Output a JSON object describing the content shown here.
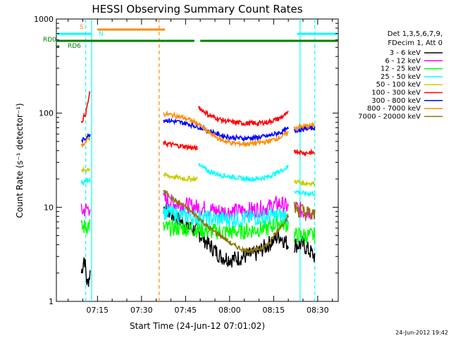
{
  "chart_data": {
    "type": "line",
    "title": "HESSI Observing Summary Count Rates",
    "xlabel": "Start Time (24-Jun-12 07:01:02)",
    "ylabel": "Count Rate (s⁻¹ detector⁻¹)",
    "yscale": "log",
    "ylim": [
      1,
      1000
    ],
    "x_units": "minutes after 07:01:02",
    "xlim": [
      0,
      96
    ],
    "x_tick_labels": [
      "07:15",
      "07:30",
      "07:45",
      "08:00",
      "08:15",
      "08:30"
    ],
    "y_tick_labels": [
      "1",
      "10",
      "100",
      "1000"
    ],
    "timestamp": "24-Jun-2012 19:42",
    "legend": {
      "header": [
        "Det 1,3,5,6,7,9,",
        "FDecim 1, Att 0"
      ],
      "entries": [
        {
          "label": "3 - 6 keV",
          "color": "#000000"
        },
        {
          "label": "6 - 12 keV",
          "color": "#ff00ff"
        },
        {
          "label": "12 - 25 keV",
          "color": "#00ff00"
        },
        {
          "label": "25 - 50 keV",
          "color": "#00ffff"
        },
        {
          "label": "50 - 100 keV",
          "color": "#cccc00"
        },
        {
          "label": "100 - 300 keV",
          "color": "#ff0000"
        },
        {
          "label": "300 - 800 keV",
          "color": "#0000ff"
        },
        {
          "label": "800 - 7000 keV",
          "color": "#ff8c00"
        },
        {
          "label": "7000 - 20000 keV",
          "color": "#8b7500"
        }
      ]
    },
    "flags": [
      {
        "label": "S",
        "color": "#ff8c00",
        "segments": [
          [
            14,
            37
          ]
        ]
      },
      {
        "label": "N",
        "color": "#00ffff",
        "segments": [
          [
            0,
            12
          ],
          [
            82,
            96
          ]
        ]
      },
      {
        "label": "RD0",
        "color": "#008000",
        "segments": [
          [
            0,
            37
          ],
          [
            37,
            47
          ],
          [
            49,
            78
          ],
          [
            78,
            96
          ]
        ]
      },
      {
        "label": "RD6",
        "color": "#008000",
        "segments": [
          [
            0,
            1
          ]
        ]
      }
    ],
    "markers": [
      {
        "x": 10,
        "color": "#00ffff",
        "style": "dashed"
      },
      {
        "x": 12,
        "color": "#00ffff",
        "style": "solid"
      },
      {
        "x": 35,
        "color": "#ff8c00",
        "style": "dashed"
      },
      {
        "x": 83,
        "color": "#00ffff",
        "style": "solid"
      },
      {
        "x": 88,
        "color": "#00ffff",
        "style": "dashed"
      }
    ],
    "series": [
      {
        "name": "3 - 6 keV",
        "color": "#000000",
        "segments": [
          {
            "x": [
              8.5,
              9.5,
              10.5,
              11.5
            ],
            "y": [
              2,
              3,
              1.5,
              2
            ]
          },
          {
            "x": [
              36.5,
              40,
              44,
              48,
              52,
              56,
              60,
              64,
              68,
              72,
              76,
              79
            ],
            "y": [
              10,
              8,
              6.5,
              5.5,
              4,
              3,
              2.8,
              3,
              3.2,
              4,
              5,
              4
            ]
          },
          {
            "x": [
              81,
              84,
              88
            ],
            "y": [
              4,
              4,
              3
            ]
          }
        ]
      },
      {
        "name": "6 - 12 keV",
        "color": "#ff00ff",
        "segments": [
          {
            "x": [
              8.5,
              11.5
            ],
            "y": [
              9,
              10
            ]
          },
          {
            "x": [
              36.5,
              40,
              44,
              48,
              52,
              56,
              60,
              64,
              68,
              72,
              76,
              79
            ],
            "y": [
              12,
              11,
              10.5,
              10,
              9.5,
              9,
              9,
              9.2,
              9.5,
              10,
              11,
              10
            ]
          },
          {
            "x": [
              81,
              84,
              88
            ],
            "y": [
              10,
              9,
              9
            ]
          }
        ]
      },
      {
        "name": "12 - 25 keV",
        "color": "#00ff00",
        "segments": [
          {
            "x": [
              8.5,
              11.5
            ],
            "y": [
              6,
              6.5
            ]
          },
          {
            "x": [
              36.5,
              40,
              44,
              48,
              52,
              56,
              60,
              64,
              68,
              72,
              76,
              79
            ],
            "y": [
              6,
              6,
              6,
              5.8,
              5.6,
              5.5,
              5.5,
              5.6,
              5.8,
              6,
              7,
              6.5
            ]
          },
          {
            "x": [
              81,
              84,
              88
            ],
            "y": [
              5,
              5,
              5
            ]
          }
        ]
      },
      {
        "name": "25 - 50 keV",
        "color": "#00ffff",
        "segments": [
          {
            "x": [
              8.5,
              11.5
            ],
            "y": [
              18,
              20
            ]
          },
          {
            "x": [
              36.5,
              40,
              44,
              48,
              52,
              56,
              60,
              64,
              68,
              72,
              76,
              79
            ],
            "y": [
              9,
              8.5,
              8,
              7.8,
              7.6,
              7.5,
              7.5,
              7.6,
              7.8,
              8,
              8.2,
              8
            ]
          },
          {
            "x": [
              48.5,
              52,
              56,
              60,
              64,
              68,
              72,
              76,
              79
            ],
            "y": [
              28,
              24,
              22,
              21,
              20,
              20,
              21,
              24,
              27
            ]
          },
          {
            "x": [
              81,
              84,
              88
            ],
            "y": [
              15,
              14,
              14
            ]
          }
        ]
      },
      {
        "name": "50 - 100 keV",
        "color": "#cccc00",
        "segments": [
          {
            "x": [
              8.5,
              11.5
            ],
            "y": [
              24,
              26
            ]
          },
          {
            "x": [
              36.5,
              40,
              44,
              48
            ],
            "y": [
              22,
              21,
              20,
              20
            ]
          },
          {
            "x": [
              81,
              84,
              88
            ],
            "y": [
              19,
              18,
              18
            ]
          }
        ]
      },
      {
        "name": "100 - 300 keV",
        "color": "#ff0000",
        "segments": [
          {
            "x": [
              8.5,
              10,
              11.5
            ],
            "y": [
              80,
              100,
              170
            ]
          },
          {
            "x": [
              36.5,
              40,
              44,
              48
            ],
            "y": [
              48,
              46,
              44,
              42
            ]
          },
          {
            "x": [
              48.5,
              52,
              56,
              60,
              64,
              68,
              72,
              76,
              79
            ],
            "y": [
              115,
              95,
              85,
              80,
              78,
              78,
              80,
              88,
              100
            ]
          },
          {
            "x": [
              81,
              84,
              88
            ],
            "y": [
              40,
              38,
              38
            ]
          }
        ]
      },
      {
        "name": "300 - 800 keV",
        "color": "#0000ff",
        "segments": [
          {
            "x": [
              8.5,
              11.5
            ],
            "y": [
              50,
              60
            ]
          },
          {
            "x": [
              36.5,
              40,
              44,
              48,
              52,
              56,
              60,
              64,
              68,
              72,
              76,
              79
            ],
            "y": [
              85,
              82,
              78,
              72,
              65,
              58,
              55,
              54,
              55,
              57,
              62,
              68
            ]
          },
          {
            "x": [
              81,
              84,
              88
            ],
            "y": [
              65,
              68,
              70
            ]
          }
        ]
      },
      {
        "name": "800 - 7000 keV",
        "color": "#ff8c00",
        "segments": [
          {
            "x": [
              8.5,
              11.5
            ],
            "y": [
              45,
              55
            ]
          },
          {
            "x": [
              36.5,
              40,
              44,
              48,
              52,
              56,
              60,
              64,
              68,
              72,
              76,
              79
            ],
            "y": [
              98,
              95,
              88,
              78,
              62,
              52,
              48,
              47,
              48,
              50,
              55,
              62
            ]
          },
          {
            "x": [
              81,
              84,
              88
            ],
            "y": [
              70,
              72,
              75
            ]
          }
        ]
      },
      {
        "name": "7000 - 20000 keV",
        "color": "#8b7500",
        "segments": [
          {
            "x": [
              36.5,
              40,
              44,
              48,
              52,
              56,
              60,
              64,
              68,
              72,
              76,
              79
            ],
            "y": [
              15,
              12,
              10,
              8,
              6,
              5,
              4,
              3.5,
              3.5,
              4,
              6,
              8
            ]
          },
          {
            "x": [
              81,
              84,
              88
            ],
            "y": [
              10,
              9,
              8
            ]
          }
        ]
      }
    ]
  }
}
